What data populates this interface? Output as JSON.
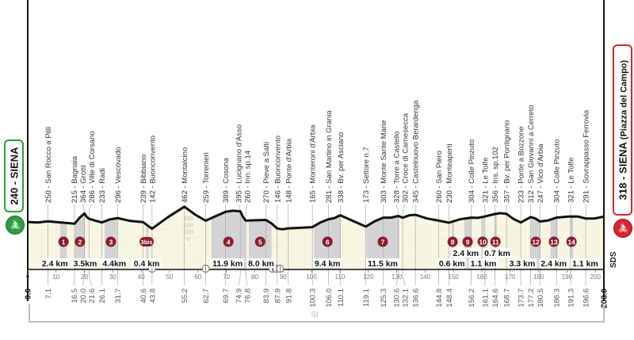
{
  "start": {
    "label": "240 - SIENA",
    "color": "#2e9e3e"
  },
  "finish": {
    "label": "318 - SIENA",
    "sublabel": "(Piazza del Campo)",
    "color": "#d9262c"
  },
  "side_code": "SDS",
  "region_label": "SI",
  "colors": {
    "sector": "#8b1c2c",
    "gravel_band": "#d3d3d5",
    "ground": "#f8f6e2",
    "profile": "#111111"
  },
  "chart_data": {
    "type": "area",
    "xlabel": "",
    "ylabel": "",
    "xlim": [
      0,
      203
    ],
    "x_ticks": [
      0,
      10,
      20,
      30,
      40,
      50,
      60,
      70,
      80,
      90,
      100,
      110,
      120,
      130,
      140,
      150,
      160,
      170,
      180,
      190,
      200
    ],
    "elevation_scale": [
      "300",
      "200",
      "100",
      "0"
    ],
    "waypoints": [
      {
        "km": "0.0",
        "elev": 240,
        "name": ""
      },
      {
        "km": "7.1",
        "elev": 250,
        "name": "250 - San Rocco a Pilli"
      },
      {
        "km": "16.5",
        "elev": 215,
        "name": "215 - Bagnaia"
      },
      {
        "km": "20.0",
        "elev": 364,
        "name": "364 - Grotti"
      },
      {
        "km": "21.6",
        "elev": 286,
        "name": "286 - Ville di Corsano"
      },
      {
        "km": "26.1",
        "elev": 233,
        "name": "233 - Radi"
      },
      {
        "km": "31.7",
        "elev": 296,
        "name": "296 - Vescovado"
      },
      {
        "km": "40.6",
        "elev": 239,
        "name": "239 - Bibbiano"
      },
      {
        "km": "43.8",
        "elev": 142,
        "name": "142 - Buonconvento"
      },
      {
        "km": "55.2",
        "elev": 462,
        "name": "462 - Montalcino"
      },
      {
        "km": "62.7",
        "elev": 259,
        "name": "259 - Torrenieri"
      },
      {
        "km": "69.7",
        "elev": 389,
        "name": "389 - Cosona"
      },
      {
        "km": "74.9",
        "elev": 395,
        "name": "395 - Lucignano d'Asso"
      },
      {
        "km": "76.8",
        "elev": 260,
        "name": "260 - Inn. sp.14"
      },
      {
        "km": "83.9",
        "elev": 270,
        "name": "270 - Pieve a Salti"
      },
      {
        "km": "87.9",
        "elev": 146,
        "name": "146 - Buonconvento"
      },
      {
        "km": "91.8",
        "elev": 148,
        "name": "148 - Ponte d'Arbia"
      },
      {
        "km": "100.3",
        "elev": 165,
        "name": "165 - Monteroni d'Arbia"
      },
      {
        "km": "106.0",
        "elev": 281,
        "name": "281 - San Martino in Grania"
      },
      {
        "km": "110.1",
        "elev": 338,
        "name": "338 - Bv. per Asciano"
      },
      {
        "km": "119.1",
        "elev": 173,
        "name": "173 - Settore n.7"
      },
      {
        "km": "125.3",
        "elev": 303,
        "name": "303 - Monte Sante Marie"
      },
      {
        "km": "130.6",
        "elev": 328,
        "name": "328 - Torre a Castello"
      },
      {
        "km": "132.1",
        "elev": 302,
        "name": "302 - Croce di Carnesecca"
      },
      {
        "km": "136.6",
        "elev": 345,
        "name": "345 - Castelnuovo Berardenga"
      },
      {
        "km": "144.8",
        "elev": 260,
        "name": "260 - San Piero"
      },
      {
        "km": "148.4",
        "elev": 230,
        "name": "230 - Monteaperti"
      },
      {
        "km": "156.2",
        "elev": 304,
        "name": "304 - Colle Pinzuto"
      },
      {
        "km": "161.1",
        "elev": 321,
        "name": "321 - Le Tolfe"
      },
      {
        "km": "164.6",
        "elev": 356,
        "name": "356 - Ins. sp.102"
      },
      {
        "km": "168.7",
        "elev": 357,
        "name": "357 - Bv. per Pontignano"
      },
      {
        "km": "173.7",
        "elev": 233,
        "name": "233 - Ponte a Bozzone"
      },
      {
        "km": "177.2",
        "elev": 312,
        "name": "312 - San Giovanni a Cerreto"
      },
      {
        "km": "180.5",
        "elev": 247,
        "name": "247 - Vico d'Arbia"
      },
      {
        "km": "186.3",
        "elev": 304,
        "name": "304 - Colle Pinzuto"
      },
      {
        "km": "191.3",
        "elev": 321,
        "name": "321 - Le Tolfe"
      },
      {
        "km": "196.6",
        "elev": 291,
        "name": "291 - Sovrappasso Ferrovia"
      },
      {
        "km": "203.0",
        "elev": 318,
        "name": ""
      }
    ],
    "sectors": [
      {
        "id": "1",
        "length": "2.4 km",
        "km": 12.6
      },
      {
        "id": "2",
        "length": "3.5km",
        "km": 18.4
      },
      {
        "id": "3",
        "length": "4.4km",
        "km": 29.3
      },
      {
        "id": "3bis",
        "length": "0.4 km",
        "km": 41.9
      },
      {
        "id": "4",
        "length": "11.9 km",
        "km": 70.7
      },
      {
        "id": "5",
        "length": "8.0 km",
        "km": 81.9
      },
      {
        "id": "6",
        "length": "9.4 km",
        "km": 105.6
      },
      {
        "id": "7",
        "length": "11.5 km",
        "km": 125.1
      },
      {
        "id": "8",
        "length": "0.6 km",
        "km": 149.7
      },
      {
        "id": "9",
        "length": "2.4 km",
        "km": 155.0
      },
      {
        "id": "10",
        "length": "1.1 km",
        "km": 160.3
      },
      {
        "id": "11",
        "length": "0.7 km",
        "km": 164.8
      },
      {
        "id": "12",
        "length": "3.3 km",
        "km": 179.0
      },
      {
        "id": "13",
        "length": "2.4 km",
        "km": 185.4
      },
      {
        "id": "14",
        "length": "1.1 km",
        "km": 191.6
      }
    ],
    "crossings_km": [
      43.8,
      62.7,
      86.2,
      87.6,
      88.9
    ]
  }
}
